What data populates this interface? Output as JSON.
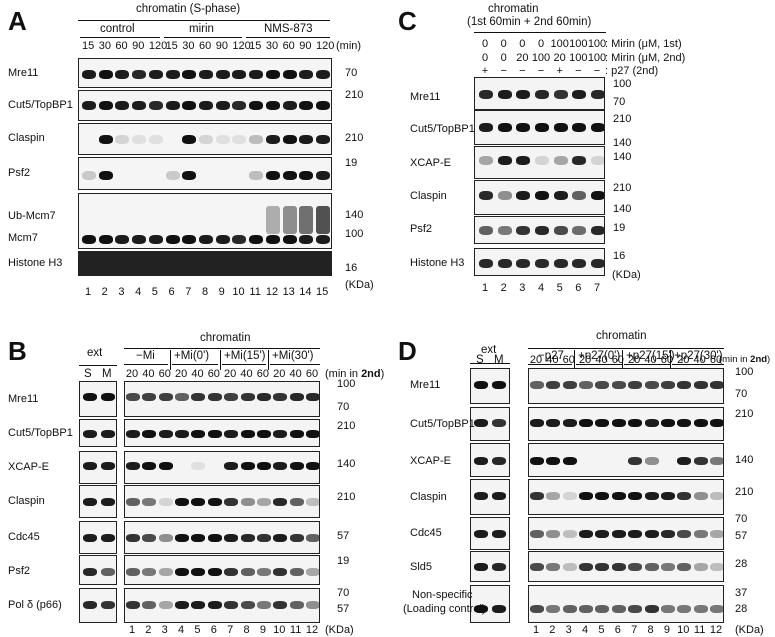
{
  "panels": {
    "A": {
      "label": "A",
      "title": "chromatin (S-phase)",
      "groups": [
        "control",
        "mirin",
        "NMS-873"
      ],
      "times": [
        "15",
        "30",
        "60",
        "90",
        "120",
        "15",
        "30",
        "60",
        "90",
        "120",
        "15",
        "30",
        "60",
        "90",
        "120"
      ],
      "unit": "(min)",
      "rows": [
        "Mre11",
        "Cut5/TopBP1",
        "Claspin",
        "Psf2",
        "Ub-Mcm7",
        "Mcm7",
        "Histone H3"
      ],
      "markers": [
        "70",
        "210",
        "210",
        "19",
        "140",
        "100",
        "16"
      ],
      "kda": "(KDa)",
      "lanes": [
        "1",
        "2",
        "3",
        "4",
        "5",
        "6",
        "7",
        "8",
        "9",
        "10",
        "11",
        "12",
        "13",
        "14",
        "15"
      ]
    },
    "B": {
      "label": "B",
      "ext": "ext",
      "ext_lanes": [
        "S",
        "M"
      ],
      "chromatin": "chromatin",
      "groups": [
        "−Mi",
        "+Mi(0')",
        "+Mi(15')",
        "+Mi(30')"
      ],
      "times": [
        "20",
        "40",
        "60",
        "20",
        "40",
        "60",
        "20",
        "40",
        "60",
        "20",
        "40",
        "60"
      ],
      "unit_a": "(min in ",
      "unit_b": "2nd",
      "unit_c": ")",
      "rows": [
        "Mre11",
        "Cut5/TopBP1",
        "XCAP-E",
        "Claspin",
        "Cdc45",
        "Psf2",
        "Pol δ (p66)"
      ],
      "markers": [
        "100",
        "70",
        "210",
        "140",
        "210",
        "57",
        "19",
        "70",
        "57"
      ],
      "kda": "(KDa)",
      "lanes": [
        "1",
        "2",
        "3",
        "4",
        "5",
        "6",
        "7",
        "8",
        "9",
        "10",
        "11",
        "12"
      ]
    },
    "C": {
      "label": "C",
      "title": "chromatin",
      "subtitle": "(1st 60min + 2nd 60min)",
      "cond1": [
        "0",
        "0",
        "0",
        "0",
        "100",
        "100",
        "100"
      ],
      "cond2": [
        "0",
        "0",
        "20",
        "100",
        "20",
        "100",
        "100"
      ],
      "cond3": [
        "+",
        "−",
        "−",
        "−",
        "+",
        "−",
        "−"
      ],
      "cond1_label": ": Mirin (μM, 1st)",
      "cond2_label": ": Mirin (μM, 2nd)",
      "cond3_label": ": p27 (2nd)",
      "rows": [
        "Mre11",
        "Cut5/TopBP1",
        "XCAP-E",
        "Claspin",
        "Psf2",
        "Histone H3"
      ],
      "markers": [
        "100",
        "70",
        "210",
        "140",
        "140",
        "210",
        "140",
        "19",
        "16"
      ],
      "kda": "(KDa)",
      "lanes": [
        "1",
        "2",
        "3",
        "4",
        "5",
        "6",
        "7"
      ]
    },
    "D": {
      "label": "D",
      "ext": "ext",
      "ext_lanes": [
        "S",
        "M"
      ],
      "chromatin": "chromatin",
      "groups": [
        "−p27",
        "+p27(0')",
        "+p27(15')",
        "+p27(30')"
      ],
      "times": [
        "20",
        "40",
        "60",
        "20",
        "40",
        "60",
        "20",
        "40",
        "60",
        "20",
        "40",
        "60"
      ],
      "unit_a": "(min in ",
      "unit_b": "2nd",
      "unit_c": ")",
      "rows": [
        "Mre11",
        "Cut5/TopBP1",
        "XCAP-E",
        "Claspin",
        "Cdc45",
        "Sld5",
        "Non-specific",
        "(Loading control)"
      ],
      "markers": [
        "100",
        "70",
        "210",
        "140",
        "210",
        "70",
        "57",
        "28",
        "37",
        "28"
      ],
      "kda": "(KDa)",
      "lanes": [
        "1",
        "2",
        "3",
        "4",
        "5",
        "6",
        "7",
        "8",
        "9",
        "10",
        "11",
        "12"
      ]
    }
  }
}
